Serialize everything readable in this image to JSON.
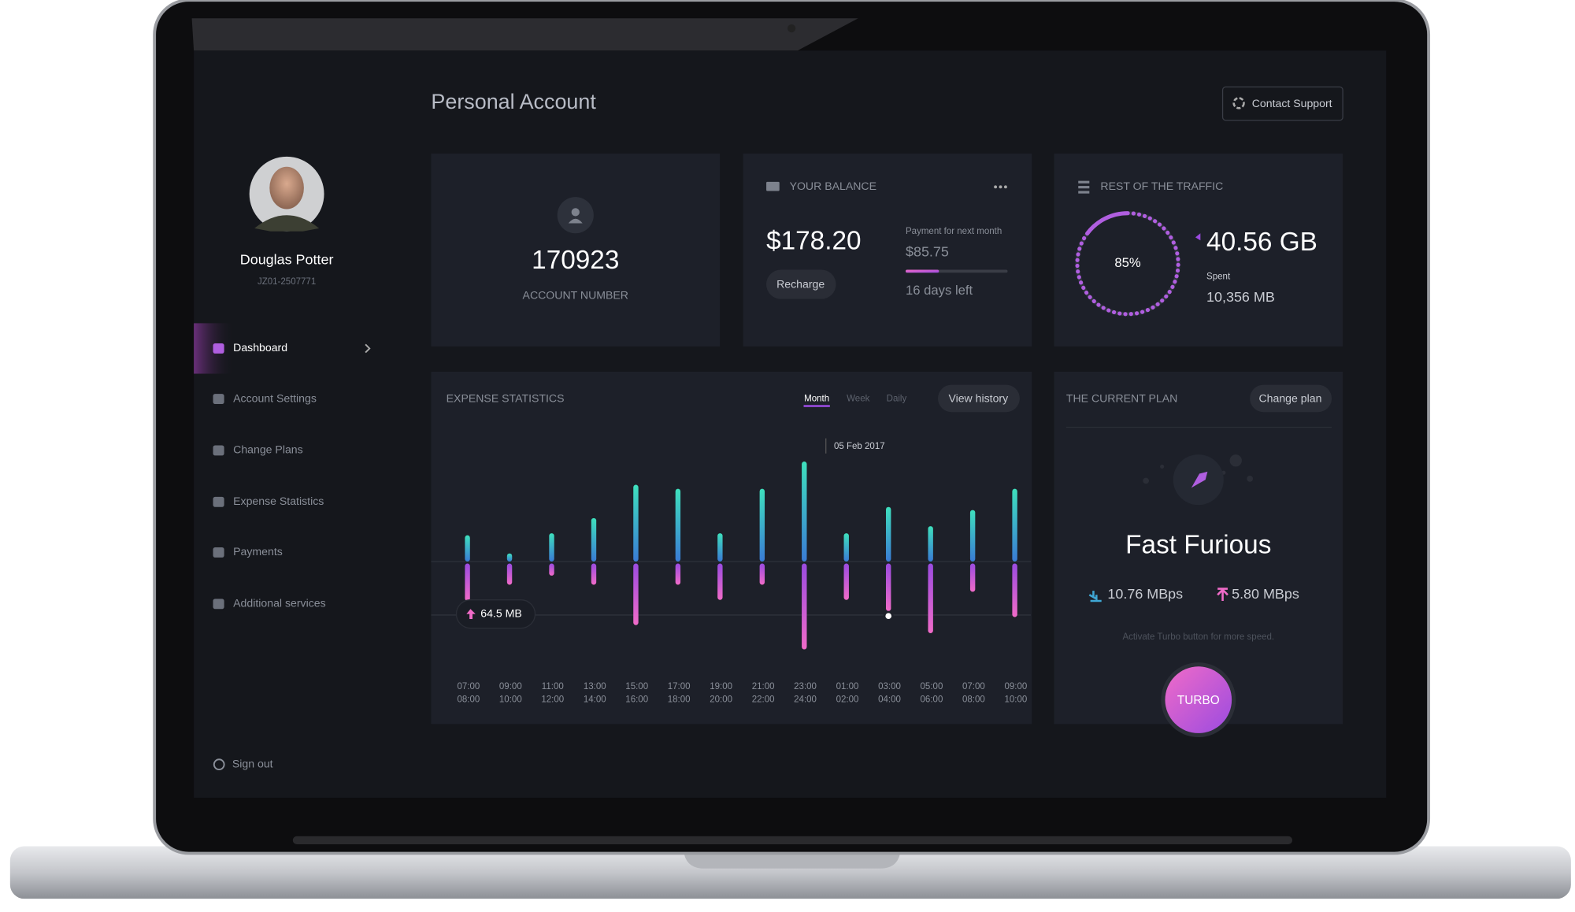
{
  "header": {
    "title": "Personal Account",
    "contact_button": "Contact Support"
  },
  "profile": {
    "name": "Douglas Potter",
    "id": "JZ01-2507771"
  },
  "nav": [
    "Dashboard",
    "Account Settings",
    "Change Plans",
    "Expense Statistics",
    "Payments",
    "Additional services"
  ],
  "sign_out": "Sign out",
  "account": {
    "number": "170923",
    "label": "ACCOUNT NUMBER"
  },
  "balance": {
    "title": "YOUR BALANCE",
    "amount": "$178.20",
    "button": "Recharge",
    "next_label": "Payment for next month",
    "next_amount": "$85.75",
    "days_left": "16 days left"
  },
  "traffic": {
    "title": "REST OF THE TRAFFIC",
    "percent": {
      "value": 85,
      "label": "85%"
    },
    "remaining": "40.56 GB",
    "spent_label": "Spent",
    "spent": "10,356 MB"
  },
  "expense": {
    "title": "EXPENSE STATISTICS",
    "tabs": [
      "Month",
      "Week",
      "Daily"
    ],
    "button": "View history",
    "date": "05 Feb 2017",
    "tooltip": "64.5 MB",
    "times": [
      [
        "07:00",
        "08:00"
      ],
      [
        "09:00",
        "10:00"
      ],
      [
        "11:00",
        "12:00"
      ],
      [
        "13:00",
        "14:00"
      ],
      [
        "15:00",
        "16:00"
      ],
      [
        "17:00",
        "18:00"
      ],
      [
        "19:00",
        "20:00"
      ],
      [
        "21:00",
        "22:00"
      ],
      [
        "23:00",
        "24:00"
      ],
      [
        "01:00",
        "02:00"
      ],
      [
        "03:00",
        "04:00"
      ],
      [
        "05:00",
        "06:00"
      ],
      [
        "07:00",
        "08:00"
      ],
      [
        "09:00",
        "10:00"
      ]
    ],
    "download": [
      26,
      8,
      28,
      43,
      76,
      72,
      28,
      72,
      99,
      28,
      54,
      35,
      51,
      72
    ],
    "upload": [
      37,
      21,
      12,
      21,
      61,
      21,
      36,
      21,
      85,
      36,
      47,
      69,
      28,
      53
    ]
  },
  "plan": {
    "title": "THE CURRENT PLAN",
    "button": "Change plan",
    "name": "Fast Furious",
    "download": "10.76 MBps",
    "upload": "5.80 MBps",
    "note": "Activate Turbo button for more speed.",
    "turbo": "TURBO"
  }
}
